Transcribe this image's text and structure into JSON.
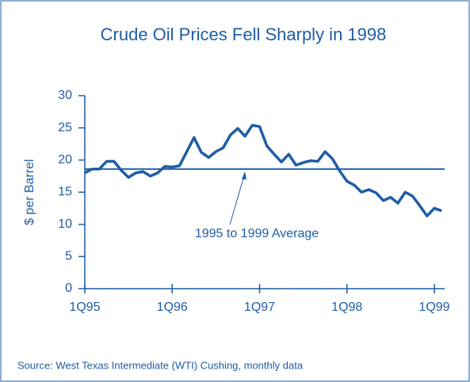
{
  "chart_data": {
    "type": "line",
    "title": "Crude Oil Prices Fell Sharply in 1998",
    "y_label": "$ per Barrel",
    "source": "Source: West Texas Intermediate (WTI) Cushing, monthly data",
    "categories": [
      "1Q95",
      null,
      null,
      null,
      null,
      null,
      null,
      null,
      null,
      null,
      null,
      null,
      "1Q96",
      null,
      null,
      null,
      null,
      null,
      null,
      null,
      null,
      null,
      null,
      null,
      "1Q97",
      null,
      null,
      null,
      null,
      null,
      null,
      null,
      null,
      null,
      null,
      null,
      "1Q98",
      null,
      null,
      null,
      null,
      null,
      null,
      null,
      null,
      null,
      null,
      null,
      "1Q99",
      null
    ],
    "series": [
      {
        "name": "WTI",
        "color": "#1f5da6",
        "values": [
          18.0,
          18.6,
          18.6,
          19.8,
          19.8,
          18.4,
          17.3,
          18.0,
          18.2,
          17.5,
          18.0,
          19.0,
          18.9,
          19.1,
          21.3,
          23.5,
          21.2,
          20.4,
          21.3,
          21.9,
          23.9,
          24.9,
          23.7,
          25.4,
          25.2,
          22.2,
          20.9,
          19.7,
          20.9,
          19.2,
          19.6,
          19.9,
          19.8,
          21.3,
          20.2,
          18.3,
          16.7,
          16.1,
          15.0,
          15.4,
          14.9,
          13.7,
          14.2,
          13.3,
          15.0,
          14.4,
          12.9,
          11.3,
          12.5,
          12.1
        ]
      }
    ],
    "reference_line": {
      "value": 18.6,
      "label": "1995 to 1999 Average"
    },
    "ylim": [
      0,
      30
    ],
    "yticks": [
      0,
      5,
      10,
      15,
      20,
      25,
      30
    ],
    "grid": false
  }
}
